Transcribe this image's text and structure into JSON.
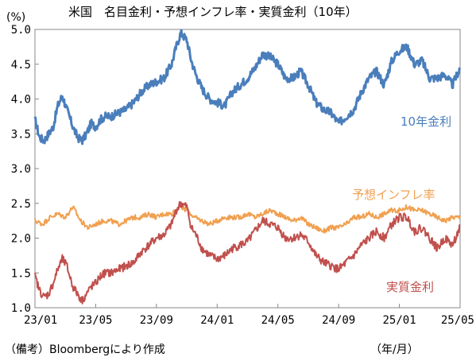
{
  "chart_data": {
    "type": "line",
    "title": "米国　名目金利・予想インフレ率・実質金利（10年）",
    "yunit": "(%)",
    "xunit": "（年/月）",
    "source": "（備考）Bloombergにより作成",
    "ylim": [
      1.0,
      5.0
    ],
    "yticks": [
      "1.0",
      "1.5",
      "2.0",
      "2.5",
      "3.0",
      "3.5",
      "4.0",
      "4.5",
      "5.0"
    ],
    "xticks": [
      "23/01",
      "23/05",
      "23/09",
      "24/01",
      "24/05",
      "24/09",
      "25/01",
      "25/05"
    ],
    "xlim": [
      0,
      28
    ],
    "grid": false,
    "series": [
      {
        "name": "10年金利",
        "color": "#4a7ebb",
        "x": [
          0,
          0.3,
          0.6,
          0.9,
          1.2,
          1.5,
          1.8,
          2.1,
          2.5,
          2.8,
          3.1,
          3.4,
          3.7,
          4.0,
          4.3,
          4.6,
          5.0,
          5.5,
          6.0,
          6.5,
          7.0,
          7.5,
          8.0,
          8.5,
          9.0,
          9.3,
          9.6,
          10.0,
          10.3,
          10.6,
          11.0,
          11.5,
          12.0,
          12.5,
          13.0,
          13.5,
          14.0,
          14.5,
          15.0,
          15.5,
          16.0,
          16.5,
          17.0,
          17.5,
          18.0,
          18.5,
          19.0,
          19.5,
          20.0,
          20.5,
          21.0,
          21.5,
          22.0,
          22.5,
          23.0,
          23.5,
          24.0,
          24.5,
          25.0,
          25.5,
          26.0,
          26.5,
          27.0,
          27.5,
          28.0
        ],
        "y": [
          3.7,
          3.45,
          3.4,
          3.5,
          3.6,
          3.9,
          4.05,
          3.85,
          3.6,
          3.45,
          3.4,
          3.5,
          3.65,
          3.6,
          3.7,
          3.75,
          3.75,
          3.8,
          3.85,
          3.95,
          4.1,
          4.2,
          4.25,
          4.3,
          4.5,
          4.75,
          4.95,
          4.85,
          4.55,
          4.35,
          4.15,
          4.0,
          3.95,
          3.9,
          4.1,
          4.2,
          4.3,
          4.45,
          4.65,
          4.6,
          4.5,
          4.3,
          4.3,
          4.4,
          4.2,
          3.95,
          3.85,
          3.8,
          3.65,
          3.75,
          3.85,
          4.1,
          4.3,
          4.4,
          4.2,
          4.55,
          4.7,
          4.75,
          4.5,
          4.55,
          4.3,
          4.3,
          4.35,
          4.2,
          4.45
        ]
      },
      {
        "name": "予想インフレ率",
        "color": "#f0a050",
        "x": [
          0,
          0.5,
          1.0,
          1.5,
          2.0,
          2.5,
          3.0,
          3.5,
          4.0,
          4.5,
          5.0,
          5.5,
          6.0,
          6.5,
          7.0,
          7.5,
          8.0,
          8.5,
          9.0,
          9.5,
          10.0,
          10.5,
          11.0,
          11.5,
          12.0,
          12.5,
          13.0,
          13.5,
          14.0,
          14.5,
          15.0,
          15.5,
          16.0,
          16.5,
          17.0,
          17.5,
          18.0,
          18.5,
          19.0,
          19.5,
          20.0,
          20.5,
          21.0,
          21.5,
          22.0,
          22.5,
          23.0,
          23.5,
          24.0,
          24.5,
          25.0,
          25.5,
          26.0,
          26.5,
          27.0,
          27.5,
          28.0
        ],
        "y": [
          2.25,
          2.2,
          2.3,
          2.35,
          2.3,
          2.45,
          2.25,
          2.15,
          2.2,
          2.25,
          2.25,
          2.2,
          2.25,
          2.3,
          2.3,
          2.35,
          2.3,
          2.35,
          2.35,
          2.45,
          2.4,
          2.3,
          2.25,
          2.2,
          2.25,
          2.3,
          2.3,
          2.3,
          2.35,
          2.3,
          2.35,
          2.4,
          2.35,
          2.3,
          2.25,
          2.3,
          2.2,
          2.15,
          2.1,
          2.15,
          2.15,
          2.2,
          2.3,
          2.3,
          2.35,
          2.3,
          2.35,
          2.4,
          2.4,
          2.45,
          2.4,
          2.4,
          2.35,
          2.3,
          2.25,
          2.3,
          2.3
        ]
      },
      {
        "name": "実質金利",
        "color": "#c0504d",
        "x": [
          0,
          0.3,
          0.6,
          0.9,
          1.2,
          1.5,
          1.8,
          2.1,
          2.5,
          2.8,
          3.1,
          3.4,
          3.7,
          4.0,
          4.3,
          4.6,
          5.0,
          5.5,
          6.0,
          6.5,
          7.0,
          7.5,
          8.0,
          8.5,
          9.0,
          9.3,
          9.6,
          10.0,
          10.3,
          10.6,
          11.0,
          11.5,
          12.0,
          12.5,
          13.0,
          13.5,
          14.0,
          14.5,
          15.0,
          15.5,
          16.0,
          16.5,
          17.0,
          17.5,
          18.0,
          18.5,
          19.0,
          19.5,
          20.0,
          20.5,
          21.0,
          21.5,
          22.0,
          22.5,
          23.0,
          23.5,
          24.0,
          24.5,
          25.0,
          25.5,
          26.0,
          26.5,
          27.0,
          27.5,
          28.0
        ],
        "y": [
          1.45,
          1.25,
          1.15,
          1.2,
          1.35,
          1.55,
          1.7,
          1.6,
          1.3,
          1.2,
          1.1,
          1.2,
          1.3,
          1.35,
          1.45,
          1.5,
          1.5,
          1.55,
          1.6,
          1.65,
          1.8,
          1.9,
          2.0,
          2.05,
          2.2,
          2.4,
          2.5,
          2.45,
          2.15,
          2.05,
          1.85,
          1.75,
          1.7,
          1.75,
          1.85,
          1.9,
          1.95,
          2.1,
          2.25,
          2.2,
          2.15,
          2.0,
          2.0,
          2.05,
          1.95,
          1.75,
          1.65,
          1.6,
          1.55,
          1.65,
          1.75,
          1.9,
          2.0,
          2.1,
          2.0,
          2.2,
          2.3,
          2.3,
          2.1,
          2.15,
          2.0,
          1.85,
          2.0,
          1.9,
          2.15
        ]
      }
    ]
  }
}
